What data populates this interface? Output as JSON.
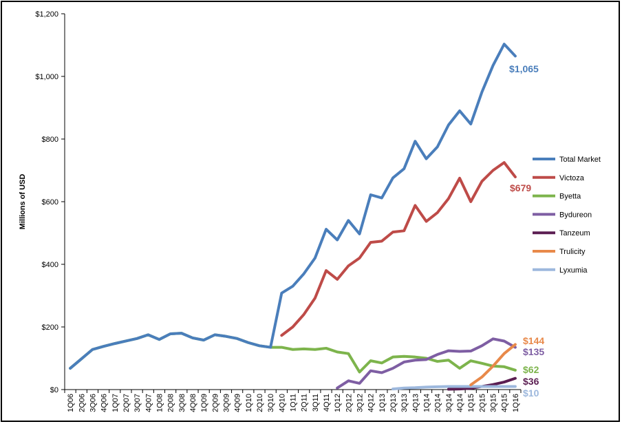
{
  "chart_data": {
    "type": "line",
    "title": "",
    "xlabel": "",
    "ylabel": "Millions of USD",
    "ylim": [
      0,
      1200
    ],
    "y_ticks": [
      0,
      200,
      400,
      600,
      800,
      1000,
      1200
    ],
    "y_tick_labels": [
      "$0",
      "$200",
      "$400",
      "$600",
      "$800",
      "$1,000",
      "$1,200"
    ],
    "grid": false,
    "legend_position": "right",
    "x": [
      "1Q06",
      "2Q06",
      "3Q06",
      "4Q06",
      "1Q07",
      "2Q07",
      "3Q07",
      "4Q07",
      "1Q08",
      "2Q08",
      "3Q08",
      "4Q08",
      "1Q09",
      "2Q09",
      "3Q09",
      "4Q09",
      "1Q10",
      "2Q10",
      "3Q10",
      "4Q10",
      "1Q11",
      "2Q11",
      "3Q11",
      "4Q11",
      "1Q12",
      "2Q12",
      "3Q12",
      "4Q12",
      "1Q13",
      "2Q13",
      "3Q13",
      "4Q13",
      "1Q14",
      "2Q14",
      "3Q14",
      "4Q14",
      "1Q15",
      "2Q15",
      "3Q15",
      "4Q15",
      "1Q16"
    ],
    "series": [
      {
        "name": "Total Market",
        "color": "#4a7ebb",
        "end_label": "$1,065",
        "values": [
          68,
          98,
          128,
          138,
          147,
          155,
          163,
          175,
          160,
          178,
          180,
          165,
          158,
          175,
          170,
          163,
          150,
          140,
          135,
          308,
          330,
          370,
          420,
          512,
          478,
          540,
          497,
          622,
          612,
          676,
          705,
          793,
          737,
          775,
          845,
          890,
          848,
          950,
          1035,
          1103,
          1065
        ]
      },
      {
        "name": "Victoza",
        "color": "#be4b48",
        "end_label": "$679",
        "values": [
          null,
          null,
          null,
          null,
          null,
          null,
          null,
          null,
          null,
          null,
          null,
          null,
          null,
          null,
          null,
          null,
          null,
          null,
          null,
          173,
          200,
          240,
          292,
          380,
          352,
          395,
          420,
          470,
          474,
          503,
          507,
          588,
          537,
          565,
          610,
          675,
          600,
          665,
          700,
          725,
          679
        ]
      },
      {
        "name": "Byetta",
        "color": "#7db44c",
        "end_label": "$62",
        "values": [
          68,
          98,
          128,
          138,
          147,
          155,
          163,
          175,
          160,
          178,
          180,
          165,
          158,
          175,
          170,
          163,
          150,
          140,
          135,
          135,
          128,
          130,
          128,
          132,
          120,
          115,
          56,
          92,
          85,
          104,
          106,
          104,
          100,
          90,
          94,
          68,
          92,
          84,
          75,
          73,
          62
        ]
      },
      {
        "name": "Bydureon",
        "color": "#7e5ea3",
        "end_label": "$135",
        "values": [
          null,
          null,
          null,
          null,
          null,
          null,
          null,
          null,
          null,
          null,
          null,
          null,
          null,
          null,
          null,
          null,
          null,
          null,
          null,
          null,
          null,
          null,
          null,
          null,
          5,
          28,
          20,
          60,
          54,
          68,
          88,
          94,
          96,
          112,
          124,
          122,
          123,
          140,
          162,
          155,
          135
        ]
      },
      {
        "name": "Tanzeum",
        "color": "#5b1e52",
        "end_label": "$36",
        "values": [
          null,
          null,
          null,
          null,
          null,
          null,
          null,
          null,
          null,
          null,
          null,
          null,
          null,
          null,
          null,
          null,
          null,
          null,
          null,
          null,
          null,
          null,
          null,
          null,
          null,
          null,
          null,
          null,
          null,
          null,
          null,
          null,
          null,
          null,
          1,
          2,
          4,
          10,
          16,
          24,
          36
        ]
      },
      {
        "name": "Trulicity",
        "color": "#e8894a",
        "end_label": "$144",
        "values": [
          null,
          null,
          null,
          null,
          null,
          null,
          null,
          null,
          null,
          null,
          null,
          null,
          null,
          null,
          null,
          null,
          null,
          null,
          null,
          null,
          null,
          null,
          null,
          null,
          null,
          null,
          null,
          null,
          null,
          null,
          null,
          null,
          null,
          null,
          null,
          null,
          15,
          40,
          75,
          115,
          144
        ]
      },
      {
        "name": "Lyxumia",
        "color": "#9db8dd",
        "end_label": "$10",
        "values": [
          null,
          null,
          null,
          null,
          null,
          null,
          null,
          null,
          null,
          null,
          null,
          null,
          null,
          null,
          null,
          null,
          null,
          null,
          null,
          null,
          null,
          null,
          null,
          null,
          null,
          null,
          null,
          null,
          null,
          2,
          5,
          6,
          8,
          9,
          10,
          10,
          10,
          10,
          10,
          10,
          10
        ]
      }
    ]
  }
}
